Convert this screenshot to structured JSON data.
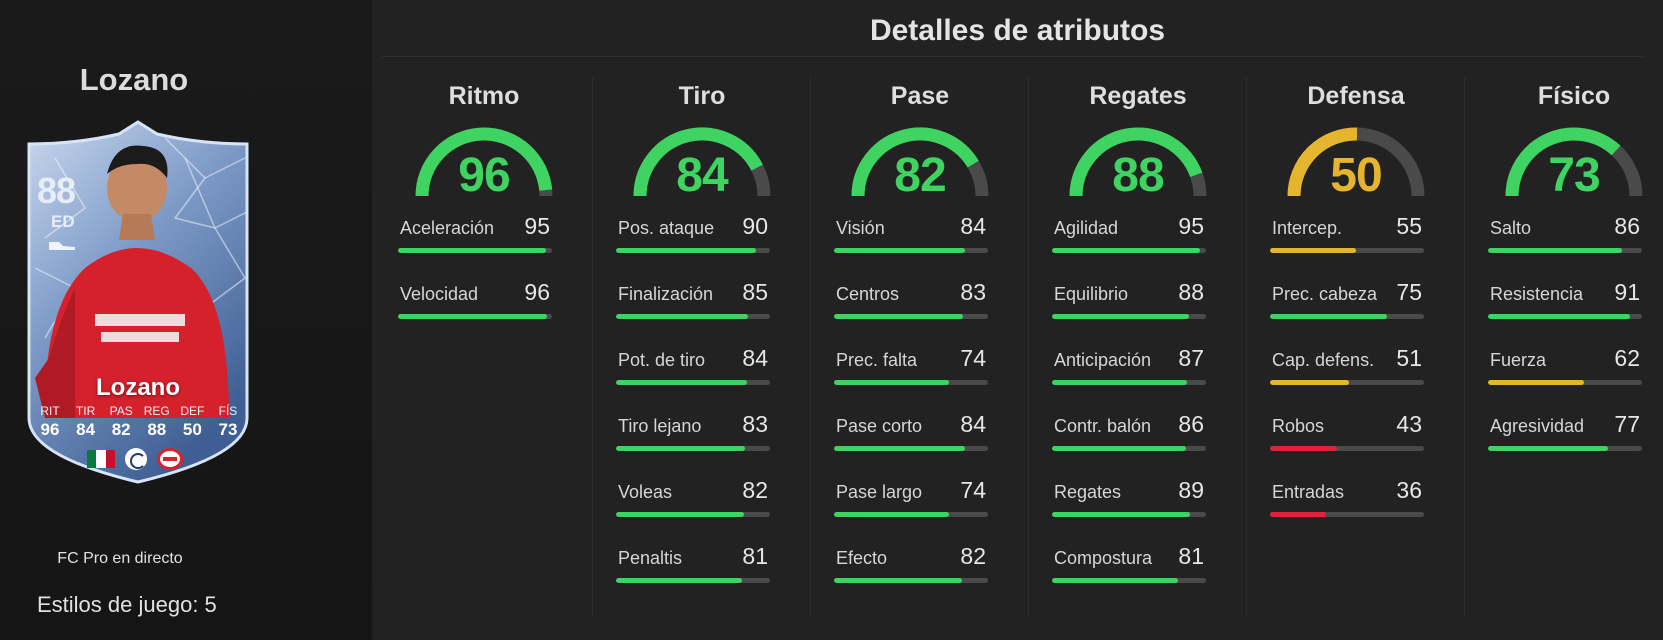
{
  "player": {
    "name": "Lozano",
    "card": {
      "rating": "88",
      "position": "ED",
      "name": "Lozano",
      "stats": [
        {
          "label": "RIT",
          "value": "96"
        },
        {
          "label": "TIR",
          "value": "84"
        },
        {
          "label": "PAS",
          "value": "82"
        },
        {
          "label": "REG",
          "value": "88"
        },
        {
          "label": "DEF",
          "value": "50"
        },
        {
          "label": "FÍS",
          "value": "73"
        }
      ]
    },
    "card_type": "FC Pro en directo",
    "play_styles": "Estilos de juego: 5"
  },
  "section_title": "Detalles de atributos",
  "colors": {
    "green": "#3fd461",
    "yellow": "#e6b52e",
    "red": "#e2223b",
    "track": "#4a4a4a"
  },
  "categories": [
    {
      "name": "Ritmo",
      "value": 96,
      "attributes": [
        {
          "label": "Aceleración",
          "value": 95
        },
        {
          "label": "Velocidad",
          "value": 96
        }
      ]
    },
    {
      "name": "Tiro",
      "value": 84,
      "attributes": [
        {
          "label": "Pos. ataque",
          "value": 90
        },
        {
          "label": "Finalización",
          "value": 85
        },
        {
          "label": "Pot. de tiro",
          "value": 84
        },
        {
          "label": "Tiro lejano",
          "value": 83
        },
        {
          "label": "Voleas",
          "value": 82
        },
        {
          "label": "Penaltis",
          "value": 81
        }
      ]
    },
    {
      "name": "Pase",
      "value": 82,
      "attributes": [
        {
          "label": "Visión",
          "value": 84
        },
        {
          "label": "Centros",
          "value": 83
        },
        {
          "label": "Prec. falta",
          "value": 74
        },
        {
          "label": "Pase corto",
          "value": 84
        },
        {
          "label": "Pase largo",
          "value": 74
        },
        {
          "label": "Efecto",
          "value": 82
        }
      ]
    },
    {
      "name": "Regates",
      "value": 88,
      "attributes": [
        {
          "label": "Agilidad",
          "value": 95
        },
        {
          "label": "Equilibrio",
          "value": 88
        },
        {
          "label": "Anticipación",
          "value": 87
        },
        {
          "label": "Contr. balón",
          "value": 86
        },
        {
          "label": "Regates",
          "value": 89
        },
        {
          "label": "Compostura",
          "value": 81
        }
      ]
    },
    {
      "name": "Defensa",
      "value": 50,
      "attributes": [
        {
          "label": "Intercep.",
          "value": 55
        },
        {
          "label": "Prec. cabeza",
          "value": 75
        },
        {
          "label": "Cap. defens.",
          "value": 51
        },
        {
          "label": "Robos",
          "value": 43
        },
        {
          "label": "Entradas",
          "value": 36
        }
      ]
    },
    {
      "name": "Físico",
      "value": 73,
      "attributes": [
        {
          "label": "Salto",
          "value": 86
        },
        {
          "label": "Resistencia",
          "value": 91
        },
        {
          "label": "Fuerza",
          "value": 62
        },
        {
          "label": "Agresividad",
          "value": 77
        }
      ]
    }
  ]
}
